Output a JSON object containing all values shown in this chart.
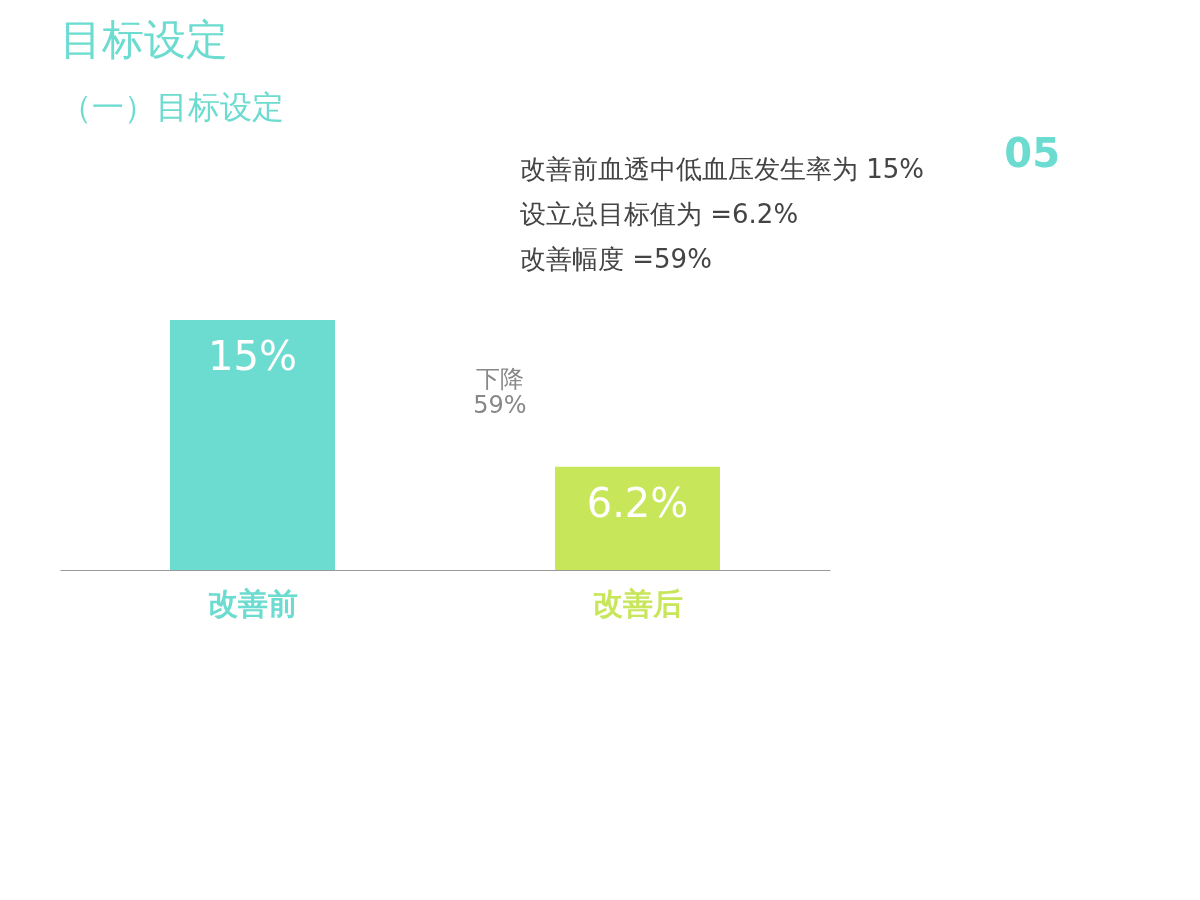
{
  "chart_data": {
    "type": "bar",
    "title": "目标设定",
    "subtitle": "（一）目标设定",
    "categories": [
      "改善前",
      "改善后"
    ],
    "values": [
      15,
      6.2
    ],
    "colors": [
      "#6cdbd0",
      "#c8e65a"
    ],
    "value_labels": [
      "15%",
      "6.2%"
    ],
    "annotations": [
      "改善前血透中低血压发生率为 15%",
      "设立总目标值为 =6.2%",
      "改善幅度 =59%",
      "下降 59%",
      "05"
    ]
  }
}
